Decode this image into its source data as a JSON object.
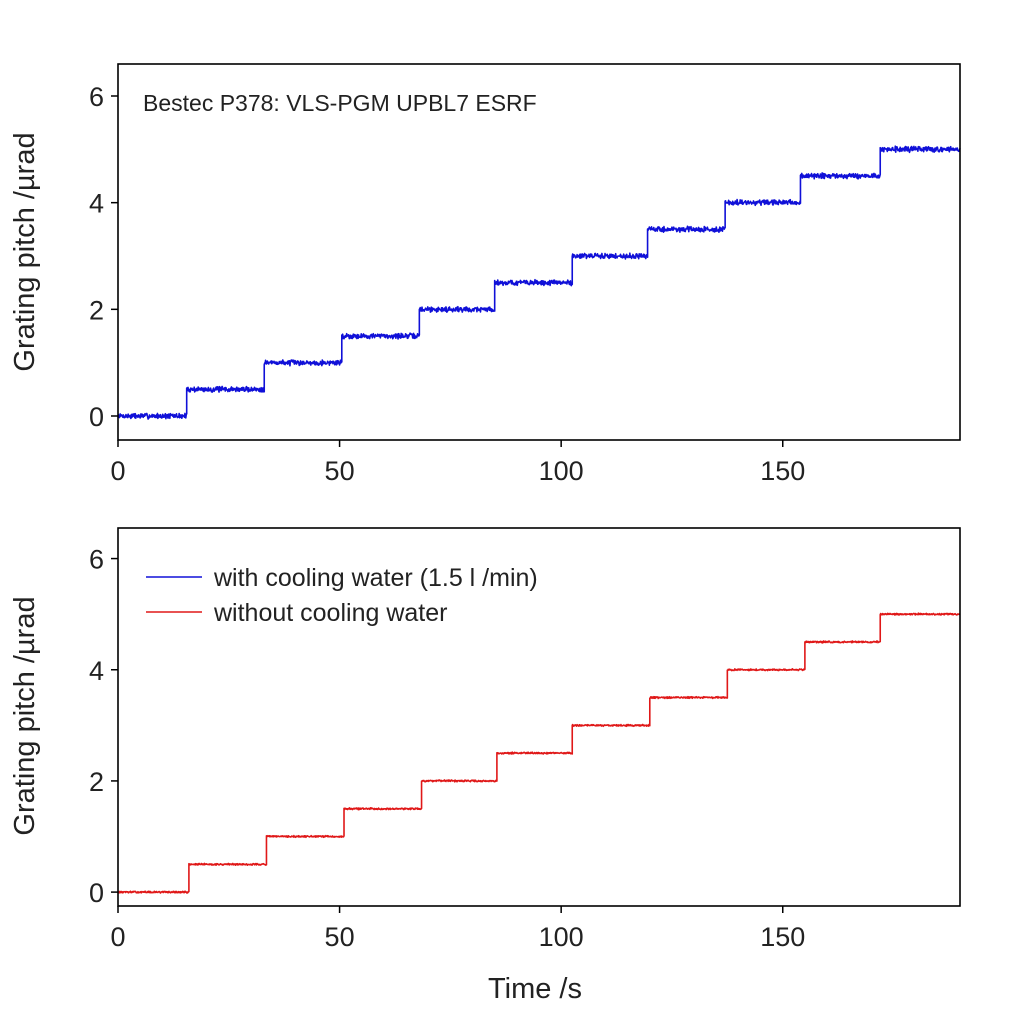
{
  "chart_data": [
    {
      "type": "line",
      "panel": "top",
      "title": "",
      "annotation": "Bestec P378: VLS-PGM UPBL7 ESRF",
      "xlabel": "",
      "ylabel": "Grating pitch /µrad",
      "xlim": [
        0,
        190
      ],
      "ylim": [
        -0.45,
        6.6
      ],
      "xticks": [
        0,
        50,
        100,
        150
      ],
      "xtick_labels": [
        "0",
        "50",
        "100",
        "150"
      ],
      "yticks": [
        0,
        2,
        4,
        6
      ],
      "ytick_labels": [
        "0",
        "2",
        "4",
        "6"
      ],
      "grid": false,
      "series": [
        {
          "name": "with cooling water (1.5 l /min)",
          "color": "#1010d8",
          "noise": 0.04,
          "steps": [
            {
              "t": 0,
              "v": 0.0
            },
            {
              "t": 15.5,
              "v": 0.5
            },
            {
              "t": 33,
              "v": 1.0
            },
            {
              "t": 50.5,
              "v": 1.5
            },
            {
              "t": 68,
              "v": 2.0
            },
            {
              "t": 85,
              "v": 2.5
            },
            {
              "t": 102.5,
              "v": 3.0
            },
            {
              "t": 119.5,
              "v": 3.5
            },
            {
              "t": 137,
              "v": 4.0
            },
            {
              "t": 154,
              "v": 4.5
            },
            {
              "t": 172,
              "v": 5.0
            }
          ],
          "t_end": 190
        }
      ]
    },
    {
      "type": "line",
      "panel": "bottom",
      "title": "",
      "xlabel": "Time /s",
      "ylabel": "Grating pitch /µrad",
      "xlim": [
        0,
        190
      ],
      "ylim": [
        -0.25,
        6.55
      ],
      "xticks": [
        0,
        50,
        100,
        150
      ],
      "xtick_labels": [
        "0",
        "50",
        "100",
        "150"
      ],
      "yticks": [
        0,
        2,
        4,
        6
      ],
      "ytick_labels": [
        "0",
        "2",
        "4",
        "6"
      ],
      "grid": false,
      "legend_position": "top-left",
      "legend": [
        {
          "label": "with cooling water (1.5 l /min)",
          "color": "#1010d8"
        },
        {
          "label": "without cooling water",
          "color": "#e01818"
        }
      ],
      "series": [
        {
          "name": "without cooling water",
          "color": "#e01818",
          "noise": 0.012,
          "steps": [
            {
              "t": 0,
              "v": 0.0
            },
            {
              "t": 16,
              "v": 0.5
            },
            {
              "t": 33.5,
              "v": 1.0
            },
            {
              "t": 51,
              "v": 1.5
            },
            {
              "t": 68.5,
              "v": 2.0
            },
            {
              "t": 85.5,
              "v": 2.5
            },
            {
              "t": 102.5,
              "v": 3.0
            },
            {
              "t": 120,
              "v": 3.5
            },
            {
              "t": 137.5,
              "v": 4.0
            },
            {
              "t": 155,
              "v": 4.5
            },
            {
              "t": 172,
              "v": 5.0
            }
          ],
          "t_end": 190
        }
      ]
    }
  ]
}
